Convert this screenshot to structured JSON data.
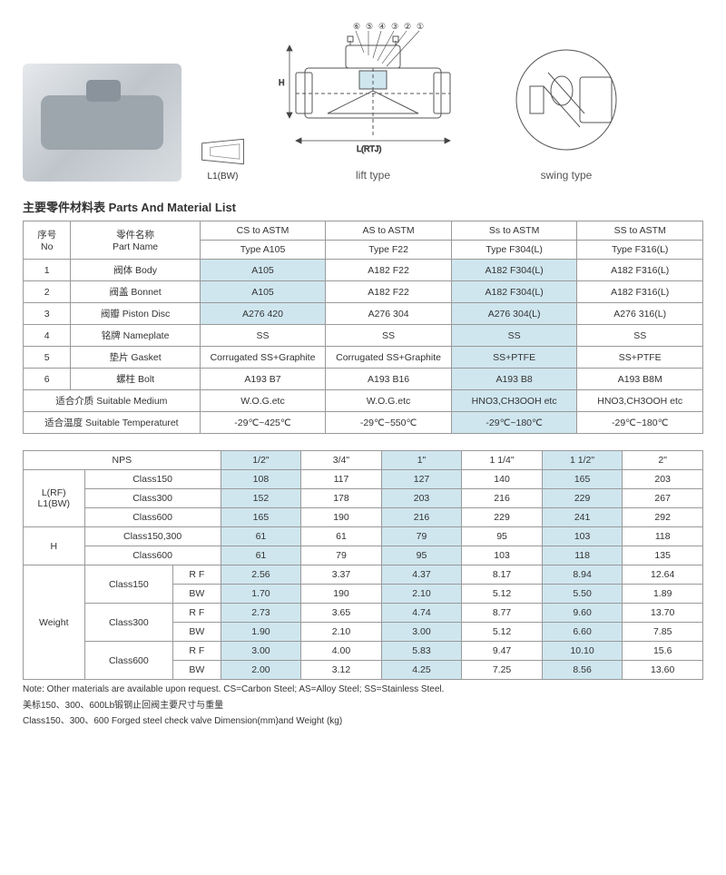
{
  "figures": {
    "trap_label": "L1(BW)",
    "mid_label": "lift type",
    "right_label": "swing type",
    "callouts": [
      "⑥",
      "⑤",
      "④",
      "③",
      "②",
      "①"
    ],
    "dims": {
      "H": "H",
      "L": "L(RTJ)"
    }
  },
  "section_title": "主要零件材料表 Parts And Material List",
  "t1": {
    "head_no": "序号\nNo",
    "head_part": "零件名称\nPart Name",
    "cols": [
      {
        "top": "CS to ASTM",
        "sub": "Type A105"
      },
      {
        "top": "AS to ASTM",
        "sub": "Type F22"
      },
      {
        "top": "Ss to ASTM",
        "sub": "Type F304(L)"
      },
      {
        "top": "SS to ASTM",
        "sub": "Type F316(L)"
      }
    ],
    "rows": [
      {
        "no": "1",
        "part": "阀体 Body",
        "v": [
          "A105",
          "A182 F22",
          "A182 F304(L)",
          "A182 F316(L)"
        ],
        "hl": [
          0,
          2
        ]
      },
      {
        "no": "2",
        "part": "阀盖 Bonnet",
        "v": [
          "A105",
          "A182 F22",
          "A182 F304(L)",
          "A182 F316(L)"
        ],
        "hl": [
          0,
          2
        ]
      },
      {
        "no": "3",
        "part": "阀瓣 Piston Disc",
        "v": [
          "A276  420",
          "A276 304",
          "A276 304(L)",
          "A276 316(L)"
        ],
        "hl": [
          0,
          2
        ]
      },
      {
        "no": "4",
        "part": "铭牌 Nameplate",
        "v": [
          "SS",
          "SS",
          "SS",
          "SS"
        ],
        "hl": [
          2
        ]
      },
      {
        "no": "5",
        "part": "垫片 Gasket",
        "v": [
          "Corrugated SS+Graphite",
          "Corrugated SS+Graphite",
          "SS+PTFE",
          "SS+PTFE"
        ],
        "hl": [
          2
        ]
      },
      {
        "no": "6",
        "part": "螺柱 Bolt",
        "v": [
          "A193 B7",
          "A193 B16",
          "A193 B8",
          "A193 B8M"
        ],
        "hl": [
          2
        ]
      }
    ],
    "extra": [
      {
        "label": "适合介质 Suitable Medium",
        "v": [
          "W.O.G.etc",
          "W.O.G.etc",
          "HNO3,CH3OOH etc",
          "HNO3,CH3OOH etc"
        ],
        "hl": [
          2
        ]
      },
      {
        "label": "适合温度 Suitable Temperaturet",
        "v": [
          "-29℃~425℃",
          "-29℃~550℃",
          "-29℃~180℃",
          "-29℃~180℃"
        ],
        "hl": [
          2
        ]
      }
    ]
  },
  "t2": {
    "nps_label": "NPS",
    "sizes": [
      "1/2\"",
      "3/4\"",
      "1\"",
      "1 1/4\"",
      "1 1/2\"",
      "2\""
    ],
    "hl_cols": [
      0,
      2,
      4
    ],
    "groups": [
      {
        "label": "L(RF)\nL1(BW)",
        "rows": [
          {
            "cls": "Class150",
            "sub": "",
            "v": [
              "108",
              "117",
              "127",
              "140",
              "165",
              "203"
            ]
          },
          {
            "cls": "Class300",
            "sub": "",
            "v": [
              "152",
              "178",
              "203",
              "216",
              "229",
              "267"
            ]
          },
          {
            "cls": "Class600",
            "sub": "",
            "v": [
              "165",
              "190",
              "216",
              "229",
              "241",
              "292"
            ]
          }
        ]
      },
      {
        "label": "H",
        "rows": [
          {
            "cls": "Class150,300",
            "sub": "",
            "v": [
              "61",
              "61",
              "79",
              "95",
              "103",
              "118"
            ]
          },
          {
            "cls": "Class600",
            "sub": "",
            "v": [
              "61",
              "79",
              "95",
              "103",
              "118",
              "135"
            ]
          }
        ]
      },
      {
        "label": "Weight",
        "rows": [
          {
            "cls": "Class150",
            "sub": "R F",
            "v": [
              "2.56",
              "3.37",
              "4.37",
              "8.17",
              "8.94",
              "12.64"
            ]
          },
          {
            "cls": "",
            "sub": "BW",
            "v": [
              "1.70",
              "190",
              "2.10",
              "5.12",
              "5.50",
              "1.89"
            ]
          },
          {
            "cls": "Class300",
            "sub": "R F",
            "v": [
              "2.73",
              "3.65",
              "4.74",
              "8.77",
              "9.60",
              "13.70"
            ]
          },
          {
            "cls": "",
            "sub": "BW",
            "v": [
              "1.90",
              "2.10",
              "3.00",
              "5.12",
              "6.60",
              "7.85"
            ]
          },
          {
            "cls": "Class600",
            "sub": "R F",
            "v": [
              "3.00",
              "4.00",
              "5.83",
              "9.47",
              "10.10",
              "15.6"
            ]
          },
          {
            "cls": "",
            "sub": "BW",
            "v": [
              "2.00",
              "3.12",
              "4.25",
              "7.25",
              "8.56",
              "13.60"
            ]
          }
        ]
      }
    ]
  },
  "notes": [
    "Note: Other materials are available upon request.   CS=Carbon Steel; AS=Alloy Steel; SS=Stainless Steel.",
    "美标150、300、600Lb锻钢止回阀主要尺寸与重量",
    "Class150、300、600 Forged steel check valve Dimension(mm)and Weight (kg)"
  ],
  "colors": {
    "highlight": "#cfe6ef",
    "border": "#999999",
    "text": "#333333"
  }
}
